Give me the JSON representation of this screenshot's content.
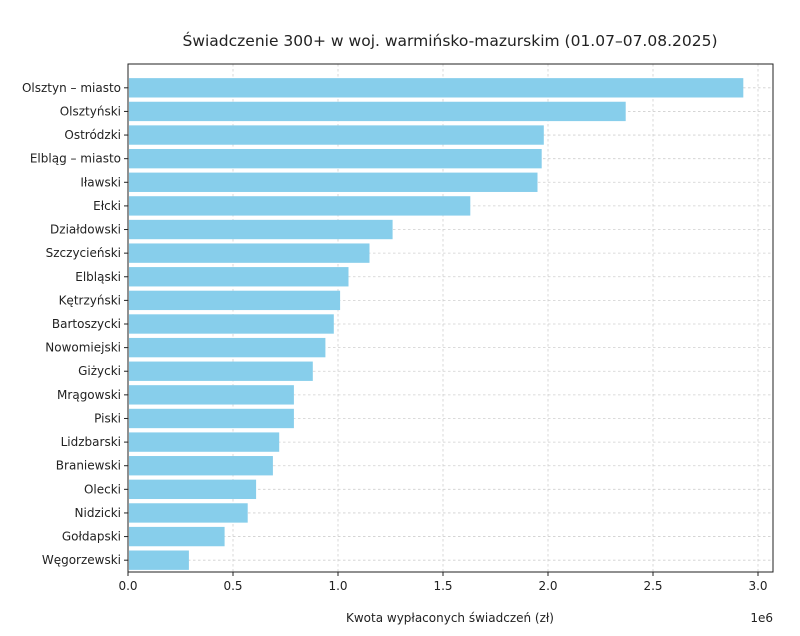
{
  "chart_data": {
    "type": "bar",
    "orientation": "horizontal",
    "title": "Świadczenie 300+ w woj. warmińsko-mazurskim (01.07–07.08.2025)",
    "xlabel": "Kwota wypłaconych świadczeń (zł)",
    "ylabel": "",
    "x_scale_label": "1e6",
    "xlim": [
      0,
      3000000
    ],
    "xticks": [
      0,
      500000,
      1000000,
      1500000,
      2000000,
      2500000,
      3000000
    ],
    "xtick_labels": [
      "0.0",
      "0.5",
      "1.0",
      "1.5",
      "2.0",
      "2.5",
      "3.0"
    ],
    "grid": true,
    "bar_color": "#87ceeb",
    "categories": [
      "Olsztyn – miasto",
      "Olsztyński",
      "Ostródzki",
      "Elbląg – miasto",
      "Iławski",
      "Ełcki",
      "Działdowski",
      "Szczycieński",
      "Elbląski",
      "Kętrzyński",
      "Bartoszycki",
      "Nowomiejski",
      "Giżycki",
      "Mrągowski",
      "Piski",
      "Lidzbarski",
      "Braniewski",
      "Olecki",
      "Nidzicki",
      "Gołdapski",
      "Węgorzewski"
    ],
    "values": [
      2930000,
      2370000,
      1980000,
      1970000,
      1950000,
      1630000,
      1260000,
      1150000,
      1050000,
      1010000,
      980000,
      940000,
      880000,
      790000,
      790000,
      720000,
      690000,
      610000,
      570000,
      460000,
      290000
    ]
  }
}
